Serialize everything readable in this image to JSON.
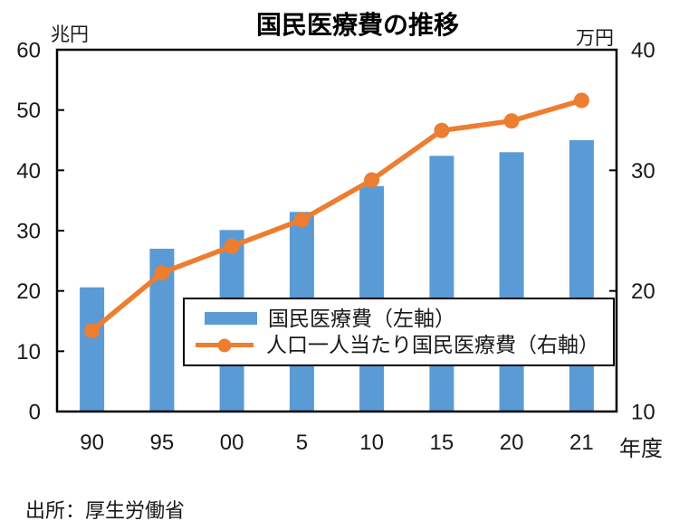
{
  "source": "出所：厚生労働省",
  "chart_data": {
    "type": "bar+line",
    "title": "国民医療費の推移",
    "categories": [
      "90",
      "95",
      "00",
      "5",
      "10",
      "15",
      "20",
      "21"
    ],
    "x_axis_suffix": "年度",
    "left_axis": {
      "unit": "兆円",
      "min": 0,
      "max": 60,
      "ticks": [
        60,
        50,
        40,
        30,
        20,
        10,
        0
      ]
    },
    "right_axis": {
      "unit": "万円",
      "min": 10,
      "max": 40,
      "ticks": [
        40,
        30,
        20,
        10
      ]
    },
    "series": [
      {
        "name": "国民医療費（左軸）",
        "type": "bar",
        "axis": "left",
        "color": "#5B9BD5",
        "values": [
          20.6,
          27.0,
          30.1,
          33.1,
          37.4,
          42.4,
          43.0,
          45.0
        ]
      },
      {
        "name": "人口一人当たり国民医療費（右軸）",
        "type": "line",
        "axis": "right",
        "color": "#ED7D31",
        "values": [
          16.7,
          21.5,
          23.7,
          25.9,
          29.2,
          33.3,
          34.1,
          35.8
        ]
      }
    ],
    "legend_position": "inside-bottom-right",
    "grid": false,
    "plot_border": true
  }
}
